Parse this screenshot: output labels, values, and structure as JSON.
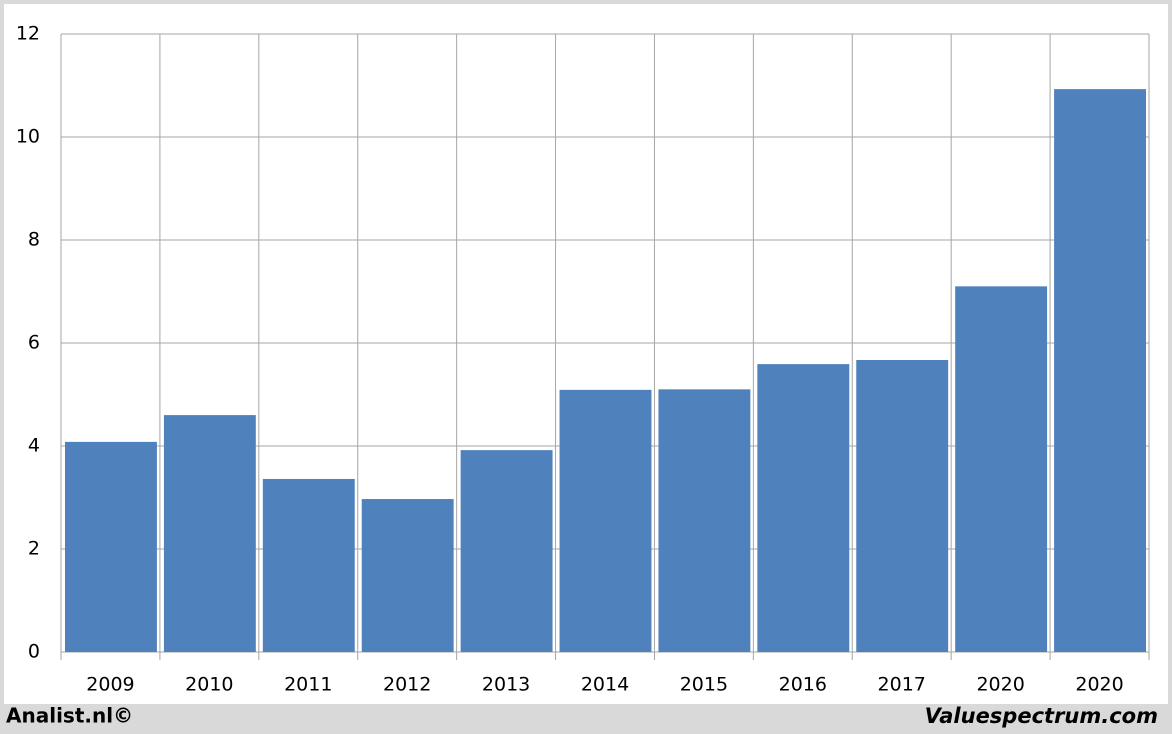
{
  "chart_data": {
    "type": "bar",
    "categories": [
      "2009",
      "2010",
      "2011",
      "2012",
      "2013",
      "2014",
      "2015",
      "2016",
      "2017",
      "2020",
      "2020"
    ],
    "values": [
      4.08,
      4.6,
      3.36,
      2.97,
      3.92,
      5.09,
      5.1,
      5.59,
      5.67,
      7.1,
      10.93
    ],
    "color": "#4f81bd",
    "ylim": [
      0,
      12
    ],
    "yticks": [
      0,
      2,
      4,
      6,
      8,
      10,
      12
    ],
    "grid": true,
    "footer_left": "Analist.nl©",
    "footer_right": "Valuespectrum.com"
  }
}
